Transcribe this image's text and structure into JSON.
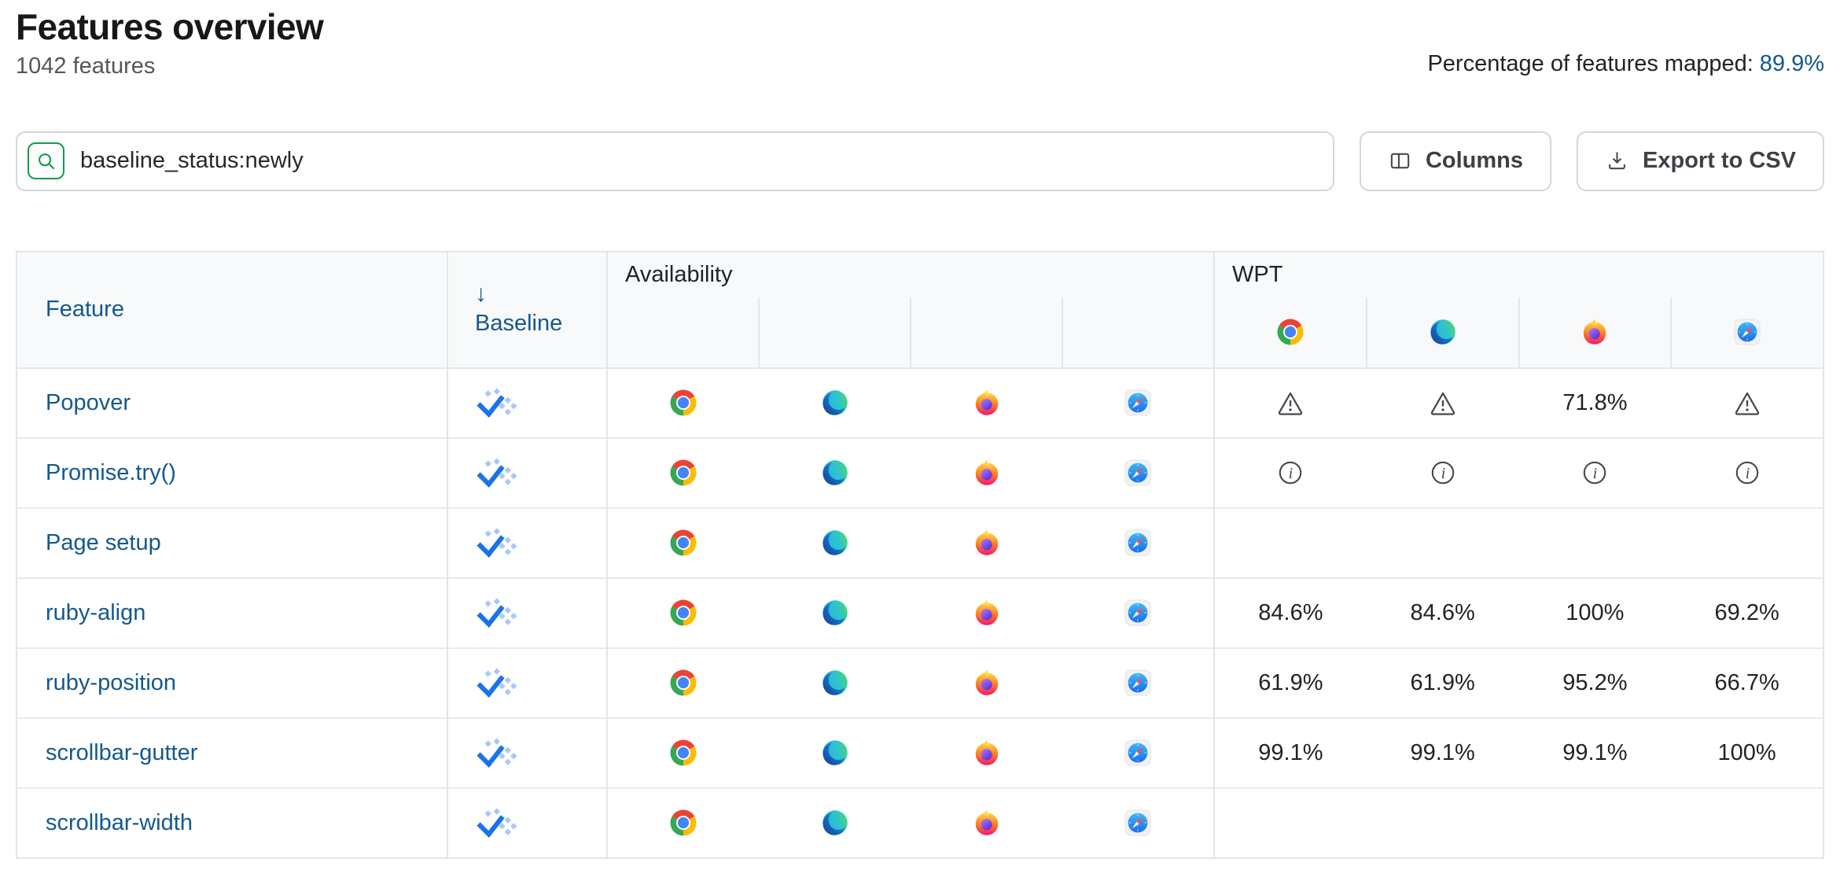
{
  "page": {
    "title": "Features overview",
    "subtitle": "1042 features",
    "mapped_label": "Percentage of features mapped:",
    "mapped_value": "89.9%"
  },
  "toolbar": {
    "search_value": "baseline_status:newly",
    "columns_button": "Columns",
    "export_button": "Export to CSV"
  },
  "colors": {
    "link": "#14588f",
    "baseline_check": "#1a73e8",
    "baseline_dots": "#a9c7fb",
    "search_icon_green": "#149a4e",
    "header_bg": "#f8f9fa",
    "border": "#e3e5e8"
  },
  "table": {
    "headers": {
      "feature": "Feature",
      "baseline": "Baseline",
      "availability": "Availability",
      "wpt": "WPT",
      "sort_arrow": "↓"
    },
    "browsers": [
      "chrome",
      "edge",
      "firefox",
      "safari"
    ],
    "rows": [
      {
        "feature": "Popover",
        "baseline": "newly",
        "availability": [
          "chrome",
          "edge",
          "firefox",
          "safari"
        ],
        "wpt": [
          "warning",
          "warning",
          "71.8%",
          "warning"
        ]
      },
      {
        "feature": "Promise.try()",
        "baseline": "newly",
        "availability": [
          "chrome",
          "edge",
          "firefox",
          "safari"
        ],
        "wpt": [
          "info",
          "info",
          "info",
          "info"
        ]
      },
      {
        "feature": "Page setup",
        "baseline": "newly",
        "availability": [
          "chrome",
          "edge",
          "firefox",
          "safari"
        ],
        "wpt": [
          "",
          "",
          "",
          ""
        ]
      },
      {
        "feature": "ruby-align",
        "baseline": "newly",
        "availability": [
          "chrome",
          "edge",
          "firefox",
          "safari"
        ],
        "wpt": [
          "84.6%",
          "84.6%",
          "100%",
          "69.2%"
        ]
      },
      {
        "feature": "ruby-position",
        "baseline": "newly",
        "availability": [
          "chrome",
          "edge",
          "firefox",
          "safari"
        ],
        "wpt": [
          "61.9%",
          "61.9%",
          "95.2%",
          "66.7%"
        ]
      },
      {
        "feature": "scrollbar-gutter",
        "baseline": "newly",
        "availability": [
          "chrome",
          "edge",
          "firefox",
          "safari"
        ],
        "wpt": [
          "99.1%",
          "99.1%",
          "99.1%",
          "100%"
        ]
      },
      {
        "feature": "scrollbar-width",
        "baseline": "newly",
        "availability": [
          "chrome",
          "edge",
          "firefox",
          "safari"
        ],
        "wpt": [
          "",
          "",
          "",
          ""
        ]
      }
    ]
  }
}
